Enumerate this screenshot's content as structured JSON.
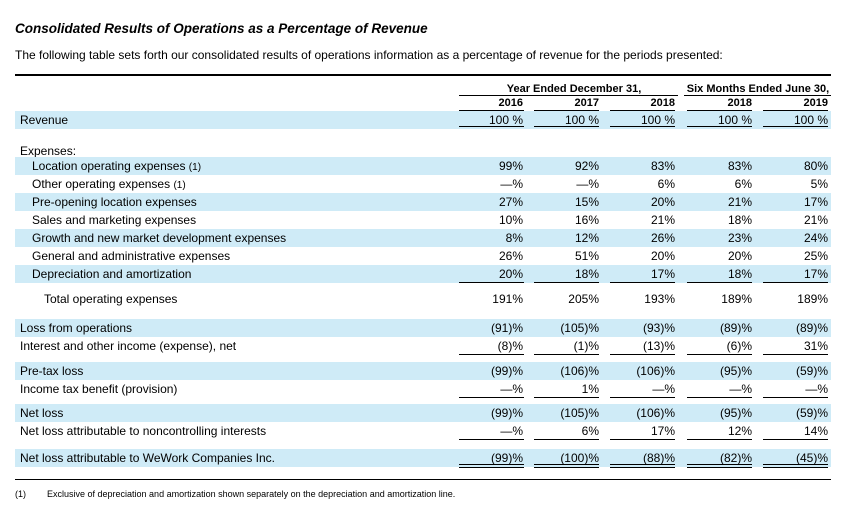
{
  "title": "Consolidated Results of Operations as a Percentage of Revenue",
  "intro": "The following table sets forth our consolidated results of operations information as a percentage of revenue for the periods presented:",
  "headers": {
    "group1": "Year Ended December 31,",
    "group2": "Six Months Ended June 30,",
    "years": [
      "2016",
      "2017",
      "2018",
      "2018",
      "2019"
    ]
  },
  "rows": [
    {
      "label": "Revenue",
      "values": [
        "100 %",
        "100 %",
        "100 %",
        "100 %",
        "100 %"
      ]
    },
    {
      "label": "Expenses:",
      "values": []
    },
    {
      "label": "Location operating expenses",
      "footnote": "(1)",
      "values": [
        "99%",
        "92%",
        "83%",
        "83%",
        "80%"
      ]
    },
    {
      "label": "Other operating expenses",
      "footnote": "(1)",
      "values": [
        "—%",
        "—%",
        "6%",
        "6%",
        "5%"
      ]
    },
    {
      "label": "Pre-opening location expenses",
      "values": [
        "27%",
        "15%",
        "20%",
        "21%",
        "17%"
      ]
    },
    {
      "label": "Sales and marketing expenses",
      "values": [
        "10%",
        "16%",
        "21%",
        "18%",
        "21%"
      ]
    },
    {
      "label": "Growth and new market development expenses",
      "values": [
        "8%",
        "12%",
        "26%",
        "23%",
        "24%"
      ]
    },
    {
      "label": "General and administrative expenses",
      "values": [
        "26%",
        "51%",
        "20%",
        "20%",
        "25%"
      ]
    },
    {
      "label": "Depreciation and amortization",
      "values": [
        "20%",
        "18%",
        "17%",
        "18%",
        "17%"
      ]
    },
    {
      "label": "Total operating expenses",
      "values": [
        "191%",
        "205%",
        "193%",
        "189%",
        "189%"
      ]
    },
    {
      "label": "Loss from operations",
      "values": [
        "(91)%",
        "(105)%",
        "(93)%",
        "(89)%",
        "(89)%"
      ]
    },
    {
      "label": "Interest and other income (expense), net",
      "values": [
        "(8)%",
        "(1)%",
        "(13)%",
        "(6)%",
        "31%"
      ]
    },
    {
      "label": "Pre-tax loss",
      "values": [
        "(99)%",
        "(106)%",
        "(106)%",
        "(95)%",
        "(59)%"
      ]
    },
    {
      "label": "Income tax benefit (provision)",
      "values": [
        "—%",
        "1%",
        "—%",
        "—%",
        "—%"
      ]
    },
    {
      "label": "Net loss",
      "values": [
        "(99)%",
        "(105)%",
        "(106)%",
        "(95)%",
        "(59)%"
      ]
    },
    {
      "label": "Net loss attributable to noncontrolling interests",
      "values": [
        "—%",
        "6%",
        "17%",
        "12%",
        "14%"
      ]
    },
    {
      "label": "Net loss attributable to WeWork Companies Inc.",
      "values": [
        "(99)%",
        "(100)%",
        "(88)%",
        "(82)%",
        "(45)%"
      ]
    }
  ],
  "footnote": {
    "marker": "(1)",
    "text": "Exclusive of depreciation and amortization shown separately on the depreciation and amortization line."
  }
}
